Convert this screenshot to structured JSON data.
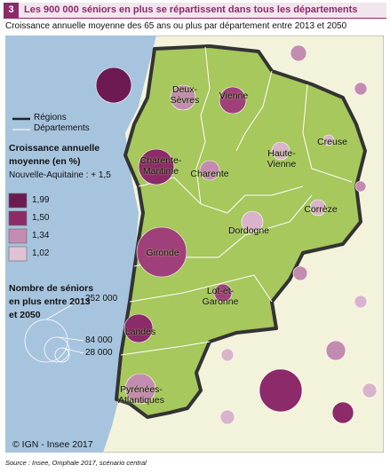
{
  "header": {
    "number": "3",
    "title": "Les 900 000 séniors en plus se répartissent dans tous les départements"
  },
  "subtitle": "Croissance annuelle moyenne des 65 ans ou plus par département entre 2013 et 2050",
  "legend": {
    "regions": "Régions",
    "departements": "Départements",
    "growth_title": "Croissance annuelle moyenne (en %)",
    "growth_note": "Nouvelle-Aquitaine : + 1,5",
    "classes": [
      "1,99",
      "1,50",
      "1,34",
      "1,02"
    ],
    "size_title": "Nombre de séniors en plus entre 2013 et 2050",
    "sizes": [
      "252 000",
      "84 000",
      "28 000"
    ]
  },
  "departments": [
    "Deux-Sèvres",
    "Vienne",
    "Creuse",
    "Haute-Vienne",
    "Charente-Maritime",
    "Charente",
    "Corrèze",
    "Dordogne",
    "Gironde",
    "Lot-et-Garonne",
    "Landes",
    "Pyrénées-Atlantiques"
  ],
  "copyright": "© IGN - Insee 2017",
  "source": "Source : Insee, Omphale 2017, scénario central"
}
